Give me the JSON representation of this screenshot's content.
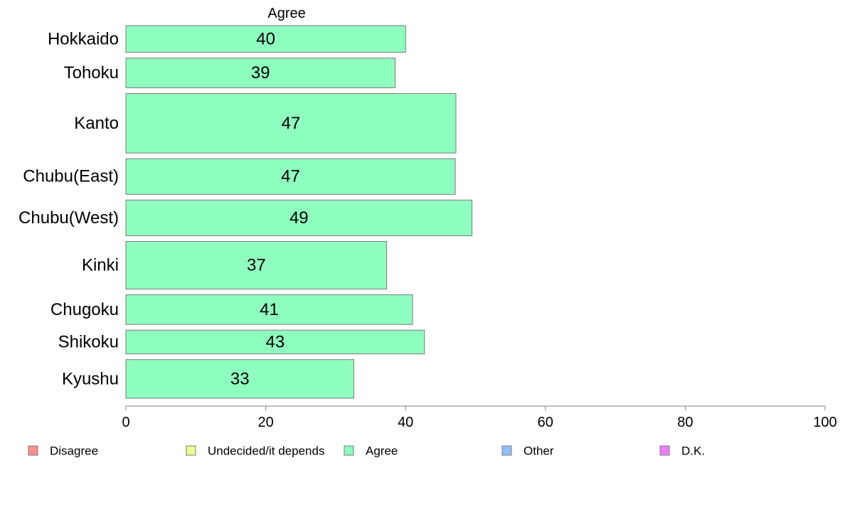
{
  "chart_data": {
    "type": "bar",
    "orientation": "horizontal",
    "title": "",
    "header": "Agree",
    "xlabel": "",
    "ylabel": "",
    "xlim": [
      0,
      100
    ],
    "x_ticks": [
      0,
      20,
      40,
      60,
      80,
      100
    ],
    "grid": false,
    "categories": [
      "Hokkaido",
      "Tohoku",
      "Kanto",
      "Chubu(East)",
      "Chubu(West)",
      "Kinki",
      "Chugoku",
      "Shikoku",
      "Kyushu"
    ],
    "bar_weights": [
      0.9,
      1.0,
      2.0,
      1.2,
      1.2,
      1.6,
      1.0,
      0.8,
      1.3
    ],
    "series": [
      {
        "name": "Agree",
        "color": "#8fffbf",
        "values": [
          40,
          38.5,
          47.2,
          47.1,
          49.5,
          37.3,
          41,
          42.7,
          32.6
        ],
        "labels": [
          "40",
          "39",
          "47",
          "47",
          "49",
          "37",
          "41",
          "43",
          "33"
        ]
      }
    ],
    "legend": {
      "position": "bottom",
      "entries": [
        {
          "label": "Disagree",
          "color": "#ff8f8f"
        },
        {
          "label": "Undecided/it depends",
          "color": "#efff8f"
        },
        {
          "label": "Agree",
          "color": "#8fffbf"
        },
        {
          "label": "Other",
          "color": "#8fbfff"
        },
        {
          "label": "D.K.",
          "color": "#ef7fff"
        }
      ]
    }
  }
}
